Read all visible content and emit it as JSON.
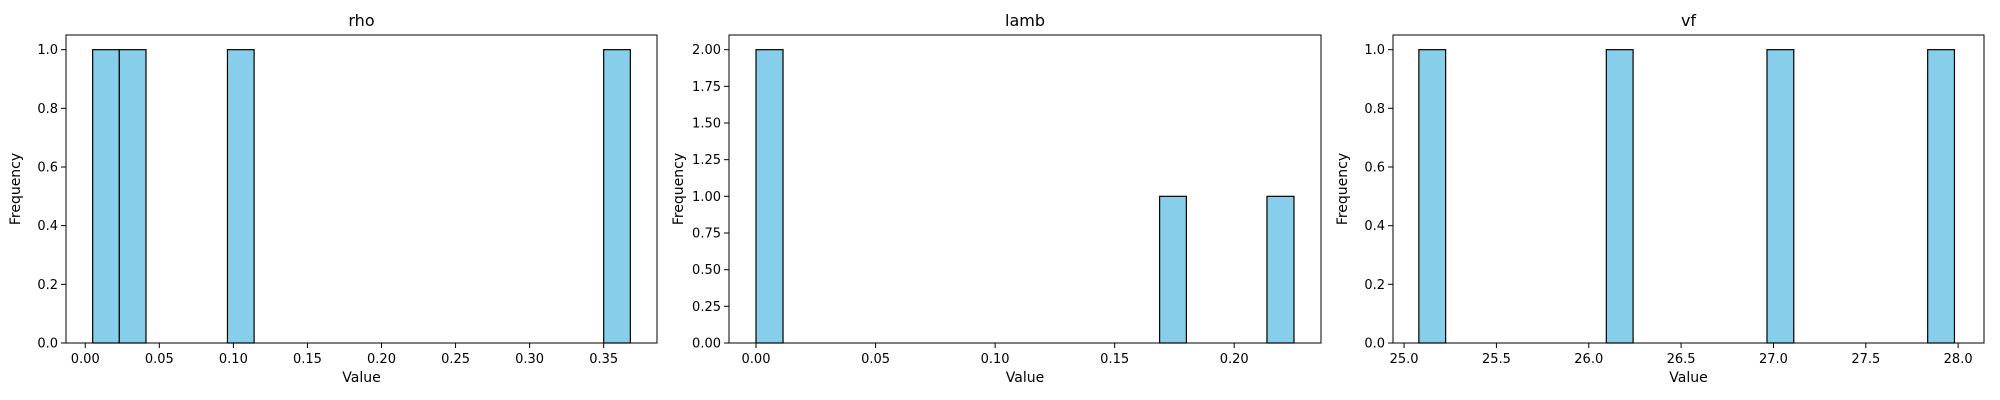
{
  "figure": {
    "background": "#ffffff"
  },
  "style": {
    "bar_fill": "#87ceeb",
    "bar_edge": "#000000"
  },
  "chart_data": [
    {
      "type": "bar",
      "title": "rho",
      "xlabel": "Value",
      "ylabel": "Frequency",
      "xlim": [
        -0.013,
        0.386
      ],
      "ylim": [
        0,
        1.05
      ],
      "x_ticks": [
        0.0,
        0.05,
        0.1,
        0.15,
        0.2,
        0.25,
        0.3,
        0.35
      ],
      "x_tick_labels": [
        "0.00",
        "0.05",
        "0.10",
        "0.15",
        "0.20",
        "0.25",
        "0.30",
        "0.35"
      ],
      "y_ticks": [
        0.0,
        0.2,
        0.4,
        0.6,
        0.8,
        1.0
      ],
      "y_tick_labels": [
        "0.0",
        "0.2",
        "0.4",
        "0.6",
        "0.8",
        "1.0"
      ],
      "bins": [
        {
          "x0": 0.005,
          "x1": 0.023,
          "count": 1
        },
        {
          "x0": 0.023,
          "x1": 0.041,
          "count": 1
        },
        {
          "x0": 0.096,
          "x1": 0.114,
          "count": 1
        },
        {
          "x0": 0.35,
          "x1": 0.368,
          "count": 1
        }
      ]
    },
    {
      "type": "bar",
      "title": "lamb",
      "xlabel": "Value",
      "ylabel": "Frequency",
      "xlim": [
        -0.0113,
        0.2363
      ],
      "ylim": [
        0,
        2.1
      ],
      "x_ticks": [
        0.0,
        0.05,
        0.1,
        0.15,
        0.2
      ],
      "x_tick_labels": [
        "0.00",
        "0.05",
        "0.10",
        "0.15",
        "0.20"
      ],
      "y_ticks": [
        0.0,
        0.25,
        0.5,
        0.75,
        1.0,
        1.25,
        1.5,
        1.75,
        2.0
      ],
      "y_tick_labels": [
        "0.00",
        "0.25",
        "0.50",
        "0.75",
        "1.00",
        "1.25",
        "1.50",
        "1.75",
        "2.00"
      ],
      "bins": [
        {
          "x0": 0.0,
          "x1": 0.0113,
          "count": 2
        },
        {
          "x0": 0.1688,
          "x1": 0.18,
          "count": 1
        },
        {
          "x0": 0.2137,
          "x1": 0.225,
          "count": 1
        }
      ]
    },
    {
      "type": "bar",
      "title": "vf",
      "xlabel": "Value",
      "ylabel": "Frequency",
      "xlim": [
        24.94,
        28.14
      ],
      "ylim": [
        0,
        1.05
      ],
      "x_ticks": [
        25.0,
        25.5,
        26.0,
        26.5,
        27.0,
        27.5,
        28.0
      ],
      "x_tick_labels": [
        "25.0",
        "25.5",
        "26.0",
        "26.5",
        "27.0",
        "27.5",
        "28.0"
      ],
      "y_ticks": [
        0.0,
        0.2,
        0.4,
        0.6,
        0.8,
        1.0
      ],
      "y_tick_labels": [
        "0.0",
        "0.2",
        "0.4",
        "0.6",
        "0.8",
        "1.0"
      ],
      "bins": [
        {
          "x0": 25.08,
          "x1": 25.225,
          "count": 1
        },
        {
          "x0": 26.095,
          "x1": 26.24,
          "count": 1
        },
        {
          "x0": 26.965,
          "x1": 27.11,
          "count": 1
        },
        {
          "x0": 27.835,
          "x1": 27.98,
          "count": 1
        }
      ]
    }
  ]
}
